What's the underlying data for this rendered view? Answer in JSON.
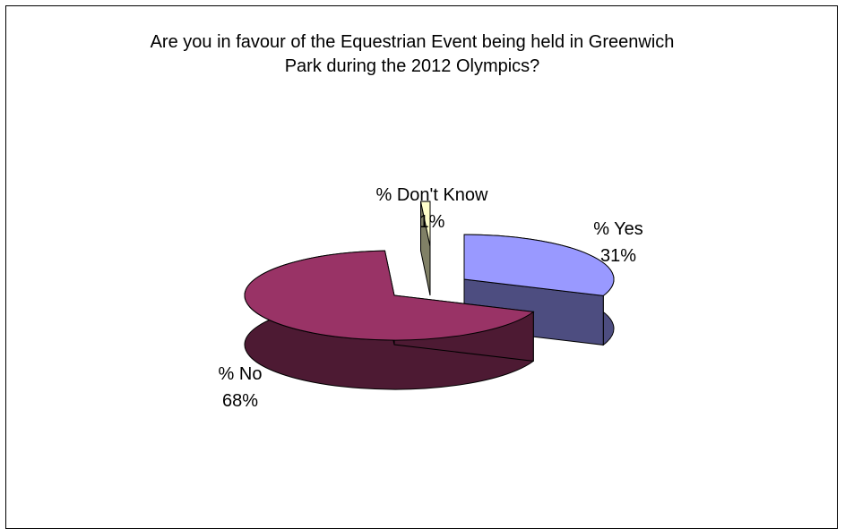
{
  "chart_data": {
    "type": "pie",
    "title_lines": [
      "Are you in favour of the Equestrian Event being held in Greenwich",
      "Park during the 2012 Olympics?"
    ],
    "slices": [
      {
        "label": "% Yes",
        "value": 31,
        "value_text": "31%",
        "top_color": "#9999ff",
        "side_color": "#4d4d80"
      },
      {
        "label": "% No",
        "value": 68,
        "value_text": "68%",
        "top_color": "#993366",
        "side_color": "#4d1a33"
      },
      {
        "label": "% Don't Know",
        "value": 1,
        "value_text": "1%",
        "top_color": "#ffffcc",
        "side_color": "#808066"
      }
    ],
    "legend": "none",
    "style": "3d-exploded"
  }
}
